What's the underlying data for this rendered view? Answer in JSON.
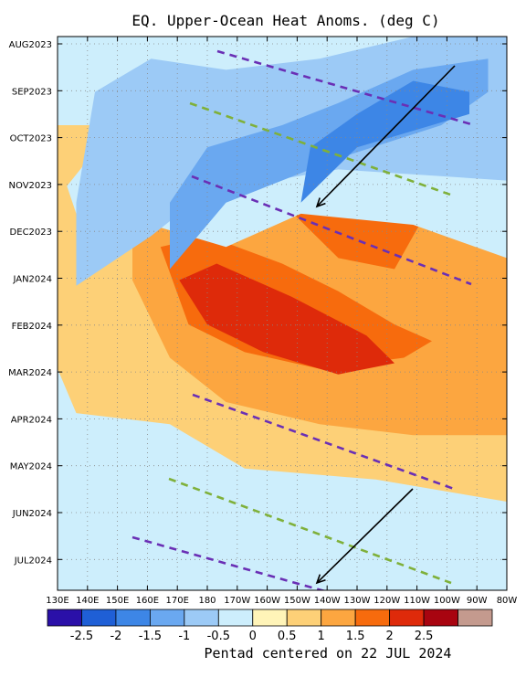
{
  "chart_data": {
    "type": "heatmap",
    "title": "EQ. Upper-Ocean Heat Anoms. (deg C)",
    "footer": "Pentad centered on 22 JUL 2024",
    "x_ticks": [
      "130E",
      "140E",
      "150E",
      "160E",
      "170E",
      "180",
      "170W",
      "160W",
      "150W",
      "140W",
      "130W",
      "120W",
      "110W",
      "100W",
      "90W",
      "80W"
    ],
    "y_ticks": [
      "AUG2023",
      "SEP2023",
      "OCT2023",
      "NOV2023",
      "DEC2023",
      "JAN2024",
      "FEB2024",
      "MAR2024",
      "APR2024",
      "MAY2024",
      "JUN2024",
      "JUL2024"
    ],
    "colorbar": {
      "labels": [
        "-2.5",
        "-2",
        "-1.5",
        "-1",
        "-0.5",
        "0",
        "0.5",
        "1",
        "1.5",
        "2",
        "2.5"
      ],
      "colors": [
        "#2a10a8",
        "#1f5fd6",
        "#3d86e6",
        "#6aa8f0",
        "#9ccaf6",
        "#cdeefc",
        "#fff4b8",
        "#fdd077",
        "#fca640",
        "#f76b0d",
        "#de2a0a",
        "#a80410",
        "#c49a8e"
      ]
    },
    "grid": true,
    "anomaly_regions": [
      {
        "level": 0.75,
        "polygon": [
          [
            0,
            0.16
          ],
          [
            18,
            0.16
          ],
          [
            32,
            0.04
          ],
          [
            48,
            0.0
          ],
          [
            48,
            0.84
          ],
          [
            34,
            0.8
          ],
          [
            20,
            0.78
          ],
          [
            12,
            0.7
          ],
          [
            2,
            0.68
          ],
          [
            0,
            0.6
          ]
        ]
      },
      {
        "level": 1.25,
        "polygon": [
          [
            8,
            0.23
          ],
          [
            15,
            0.2
          ],
          [
            24,
            0.11
          ],
          [
            32,
            0.04
          ],
          [
            48,
            0.02
          ],
          [
            48,
            0.72
          ],
          [
            38,
            0.72
          ],
          [
            28,
            0.7
          ],
          [
            18,
            0.66
          ],
          [
            12,
            0.58
          ],
          [
            8,
            0.44
          ]
        ]
      },
      {
        "level": 1.75,
        "polygon": [
          [
            20,
            0.18
          ],
          [
            28,
            0.14
          ],
          [
            32,
            0.06
          ],
          [
            41,
            0.06
          ],
          [
            44,
            0.14
          ],
          [
            42,
            0.24
          ],
          [
            40,
            0.3
          ],
          [
            36,
            0.42
          ],
          [
            30,
            0.4
          ],
          [
            24,
            0.3
          ],
          [
            20,
            0.26
          ]
        ]
      },
      {
        "level": 1.75,
        "polygon": [
          [
            11,
            0.38
          ],
          [
            16,
            0.36
          ],
          [
            24,
            0.41
          ],
          [
            30,
            0.46
          ],
          [
            36,
            0.52
          ],
          [
            40,
            0.55
          ],
          [
            37,
            0.58
          ],
          [
            28,
            0.6
          ],
          [
            20,
            0.57
          ],
          [
            14,
            0.52
          ]
        ]
      },
      {
        "level": 2.25,
        "polygon": [
          [
            13,
            0.44
          ],
          [
            17,
            0.41
          ],
          [
            25,
            0.47
          ],
          [
            33,
            0.54
          ],
          [
            36,
            0.59
          ],
          [
            30,
            0.61
          ],
          [
            22,
            0.57
          ],
          [
            16,
            0.52
          ]
        ]
      },
      {
        "level": 2.25,
        "polygon": [
          [
            33,
            0.12
          ],
          [
            37,
            0.1
          ],
          [
            40,
            0.2
          ],
          [
            36,
            0.24
          ]
        ]
      },
      {
        "level": -0.25,
        "polygon": [
          [
            1,
            0.27
          ],
          [
            10,
            0.08
          ],
          [
            30,
            0.06
          ],
          [
            48,
            0.0
          ],
          [
            48,
            0.4
          ],
          [
            38,
            0.34
          ],
          [
            26,
            0.32
          ],
          [
            18,
            0.38
          ],
          [
            10,
            0.34
          ],
          [
            4,
            0.36
          ],
          [
            2,
            0.32
          ]
        ]
      },
      {
        "level": -0.75,
        "polygon": [
          [
            2,
            0.45
          ],
          [
            10,
            0.36
          ],
          [
            16,
            0.28
          ],
          [
            30,
            0.24
          ],
          [
            48,
            0.26
          ],
          [
            48,
            0.0
          ],
          [
            38,
            0.0
          ],
          [
            28,
            0.04
          ],
          [
            18,
            0.06
          ],
          [
            10,
            0.04
          ],
          [
            4,
            0.1
          ],
          [
            2,
            0.3
          ]
        ]
      },
      {
        "level": -1.25,
        "polygon": [
          [
            12,
            0.42
          ],
          [
            18,
            0.3
          ],
          [
            30,
            0.22
          ],
          [
            41,
            0.16
          ],
          [
            46,
            0.1
          ],
          [
            46,
            0.04
          ],
          [
            38,
            0.06
          ],
          [
            30,
            0.12
          ],
          [
            24,
            0.16
          ],
          [
            16,
            0.2
          ],
          [
            12,
            0.3
          ]
        ]
      },
      {
        "level": -1.75,
        "polygon": [
          [
            26,
            0.3
          ],
          [
            32,
            0.2
          ],
          [
            40,
            0.16
          ],
          [
            44,
            0.14
          ],
          [
            44,
            0.1
          ],
          [
            38,
            0.08
          ],
          [
            32,
            0.14
          ],
          [
            27,
            0.2
          ]
        ]
      }
    ],
    "propagation_lines": [
      {
        "color": "#6a2fb5",
        "dash": "dashed",
        "from": [
          -0.5,
          0.22
        ],
        "to": [
          1.0,
          -0.06
        ]
      },
      {
        "color": "#6a2fb5",
        "dash": "dashed",
        "from": [
          -1.0,
          1.66
        ],
        "to": [
          2.7,
          1.04
        ]
      },
      {
        "color": "#7fb03a",
        "dash": "dashed",
        "from": [
          -1.3,
          1.29
        ],
        "to": [
          3.4,
          0.74
        ]
      },
      {
        "color": "#6a2fb5",
        "dash": "dashed",
        "from": [
          -2.0,
          0.9
        ],
        "to": [
          2.4,
          -0.2
        ]
      },
      {
        "color": "#7fb03a",
        "dash": "dashed",
        "from": [
          -1.0,
          0.94
        ],
        "to": [
          0.5,
          -0.4
        ]
      },
      {
        "color": "#6a2fb5",
        "dash": "dashed",
        "from": [
          0.2,
          0.1
        ],
        "to": [
          0.2,
          0.1
        ]
      }
    ]
  }
}
